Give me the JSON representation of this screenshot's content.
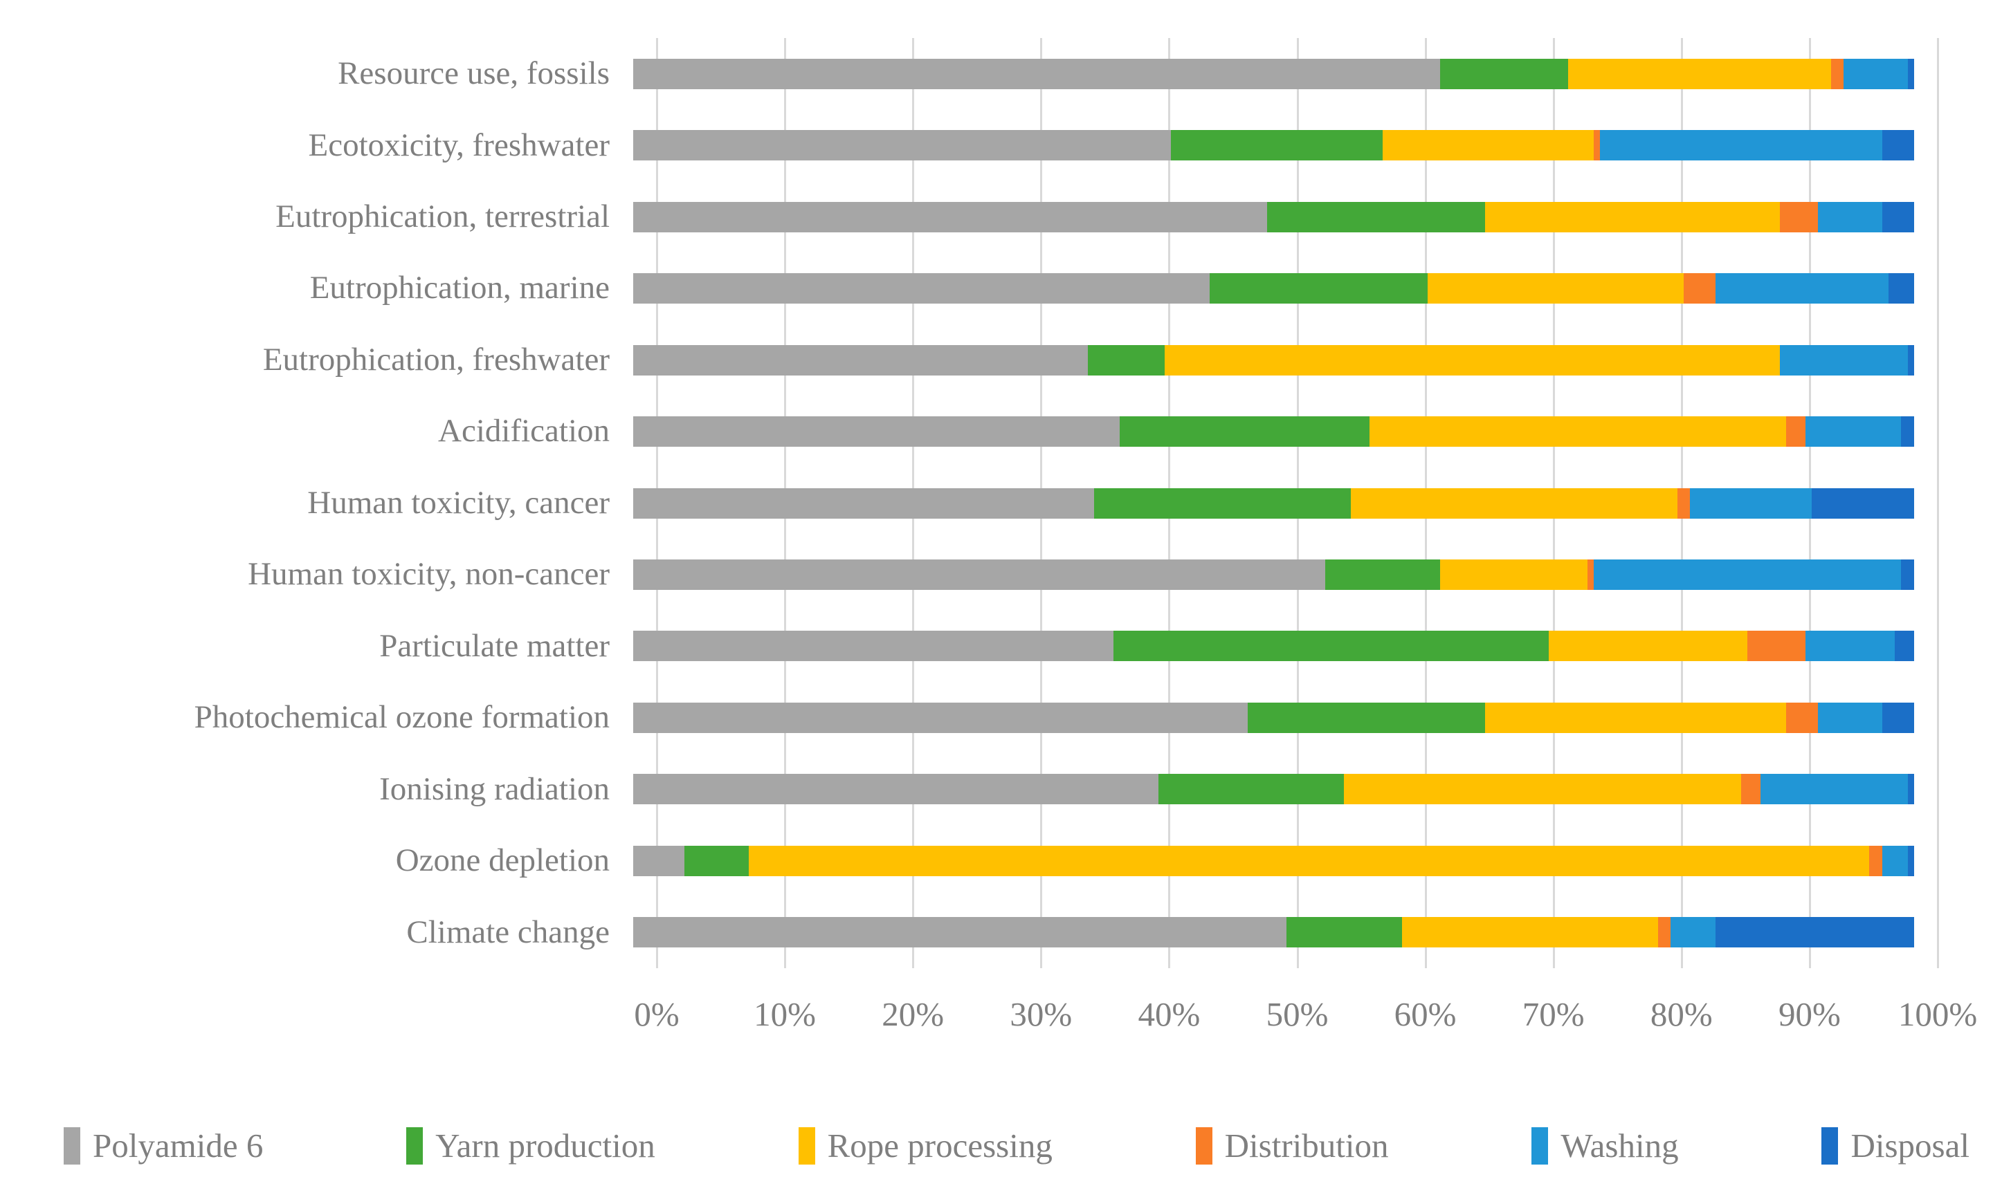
{
  "chart_data": {
    "type": "bar",
    "orientation": "horizontal",
    "stacked": true,
    "unit": "percent of impact",
    "title": "",
    "xlabel": "",
    "ylabel": "",
    "xlim": [
      0,
      100
    ],
    "grid": "vertical",
    "gridline_color": "#d9d9d9",
    "legend_position": "bottom",
    "x_ticks": [
      "0%",
      "10%",
      "20%",
      "30%",
      "40%",
      "50%",
      "60%",
      "70%",
      "80%",
      "90%",
      "100%"
    ],
    "categories": [
      "Resource use, fossils",
      "Ecotoxicity, freshwater",
      "Eutrophication, terrestrial",
      "Eutrophication, marine",
      "Eutrophication, freshwater",
      "Acidification",
      "Human toxicity, cancer",
      "Human toxicity, non-cancer",
      "Particulate matter",
      "Photochemical ozone formation",
      "Ionising radiation",
      "Ozone depletion",
      "Climate change"
    ],
    "series": [
      {
        "name": "Polyamide 6",
        "color": "#a6a6a6",
        "values": [
          63,
          42,
          49.5,
          45,
          35.5,
          38,
          36,
          54,
          37.5,
          48,
          41,
          4,
          51
        ]
      },
      {
        "name": "Yarn production",
        "color": "#43a838",
        "values": [
          10,
          16.5,
          17,
          17,
          6,
          19.5,
          20,
          9,
          34,
          18.5,
          14.5,
          5,
          9
        ]
      },
      {
        "name": "Rope processing",
        "color": "#ffc000",
        "values": [
          20.5,
          16.5,
          23,
          20,
          48,
          32.5,
          25.5,
          11.5,
          15.5,
          23.5,
          31,
          87.5,
          20
        ]
      },
      {
        "name": "Distribution",
        "color": "#f97d27",
        "values": [
          1,
          0.5,
          3,
          2.5,
          0,
          1.5,
          1,
          0.5,
          4.5,
          2.5,
          1.5,
          1,
          1
        ]
      },
      {
        "name": "Washing",
        "color": "#2196d6",
        "values": [
          5,
          22,
          5,
          13.5,
          10,
          7.5,
          9.5,
          24,
          7,
          5,
          11.5,
          2,
          3.5
        ]
      },
      {
        "name": "Disposal",
        "color": "#1b6fc7",
        "values": [
          0.5,
          2.5,
          2.5,
          2,
          0.5,
          1,
          8,
          1,
          1.5,
          2.5,
          0.5,
          0.5,
          15.5
        ]
      }
    ]
  },
  "text_color": "#7f7f7f"
}
